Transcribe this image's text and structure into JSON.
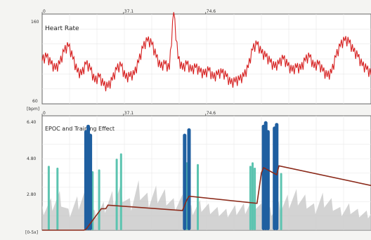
{
  "chart_data": [
    {
      "type": "line",
      "title": "Heart Rate",
      "ylabel_top": "160",
      "ylabel_bottom": "60",
      "y_unit": "[bpm]",
      "ylim": [
        60,
        160
      ],
      "xlim": [
        0,
        150
      ],
      "x_tick_labels": [
        "0",
        "37.1",
        "74.6"
      ],
      "x_tick_values": [
        0,
        37.1,
        74.6
      ],
      "grid": true,
      "series": [
        {
          "color": "#d62020",
          "x": [
            0,
            2,
            4,
            6,
            8,
            10,
            12,
            14,
            16,
            18,
            20,
            22,
            24,
            26,
            28,
            30,
            32,
            34,
            36,
            38,
            40,
            42,
            44,
            46,
            48,
            50,
            52,
            54,
            56,
            58,
            60,
            62,
            64,
            66,
            68,
            70,
            72,
            74,
            76,
            78,
            80,
            82,
            84,
            86,
            88,
            90,
            92,
            94,
            96,
            98,
            100,
            102,
            104,
            106,
            108,
            110,
            112,
            114,
            116,
            118,
            120,
            122,
            124,
            126,
            128,
            130,
            132,
            134,
            136,
            138,
            140,
            142,
            144,
            146,
            148,
            150
          ],
          "values": [
            108,
            112,
            104,
            98,
            104,
            118,
            124,
            110,
            95,
            92,
            104,
            98,
            84,
            90,
            80,
            78,
            86,
            98,
            102,
            88,
            90,
            92,
            106,
            122,
            130,
            126,
            112,
            100,
            104,
            98,
            162,
            110,
            98,
            104,
            96,
            100,
            95,
            92,
            97,
            88,
            92,
            94,
            90,
            82,
            84,
            86,
            90,
            100,
            120,
            126,
            116,
            112,
            106,
            100,
            104,
            110,
            102,
            96,
            100,
            98,
            108,
            112,
            100,
            104,
            96,
            90,
            94,
            112,
            124,
            130,
            128,
            118,
            112,
            102,
            98,
            92
          ]
        }
      ]
    },
    {
      "type": "area",
      "title": "EPOC and Training Effect",
      "ylabel_top": "6.40",
      "ylabel_mid1": "4.80",
      "ylabel_mid2": "2.80",
      "y_unit": "[0-5x]",
      "ylim": [
        0,
        6.4
      ],
      "xlim": [
        0,
        150
      ],
      "x_tick_labels": [
        "0",
        "37.1",
        "74.6"
      ],
      "x_tick_values": [
        0,
        37.1,
        74.6
      ],
      "grid": true,
      "series": [
        {
          "kind": "background",
          "color": "#c8c8c8",
          "x": [
            0,
            4,
            8,
            12,
            16,
            20,
            24,
            28,
            32,
            36,
            40,
            44,
            48,
            52,
            56,
            60,
            64,
            68,
            72,
            76,
            80,
            84,
            88,
            92,
            96,
            100,
            104,
            108,
            112,
            116,
            120,
            124,
            128,
            132,
            136,
            140,
            144,
            148,
            150
          ],
          "values": [
            1.4,
            1.8,
            2.2,
            1.2,
            1.9,
            2.4,
            1.1,
            1.6,
            2.2,
            2.6,
            1.8,
            2.8,
            2.1,
            2.5,
            2.3,
            1.8,
            2.0,
            1.4,
            1.7,
            1.5,
            1.3,
            1.2,
            1.4,
            1.5,
            1.8,
            1.5,
            1.3,
            1.6,
            2.0,
            2.3,
            2.0,
            1.5,
            2.1,
            1.8,
            1.3,
            1.5,
            1.2,
            1.1,
            0.9
          ]
        },
        {
          "kind": "spikes-light",
          "color": "#5cc4b0",
          "x": [
            3,
            7,
            23,
            26,
            34,
            36,
            66,
            71,
            95,
            96,
            97,
            109
          ],
          "values": [
            3.6,
            3.5,
            3.3,
            3.4,
            4.0,
            4.3,
            3.8,
            3.7,
            3.6,
            3.8,
            3.5,
            3.2
          ]
        },
        {
          "kind": "spikes-dark",
          "color": "#1f5fa0",
          "x": [
            20,
            21,
            22,
            65,
            67,
            101,
            102,
            103,
            106,
            107
          ],
          "values": [
            5.6,
            5.9,
            5.4,
            5.4,
            5.7,
            5.9,
            6.1,
            5.6,
            5.8,
            6.0
          ]
        },
        {
          "kind": "training-effect",
          "color": "#8b2a1a",
          "x": [
            0,
            19,
            20,
            27,
            29,
            30,
            64,
            66,
            67,
            98,
            100,
            101,
            107,
            108,
            150
          ],
          "values": [
            0,
            0,
            0.05,
            1.2,
            1.2,
            1.4,
            1.1,
            1.7,
            1.9,
            1.5,
            3.2,
            3.5,
            3.1,
            3.6,
            2.5
          ]
        }
      ]
    }
  ]
}
